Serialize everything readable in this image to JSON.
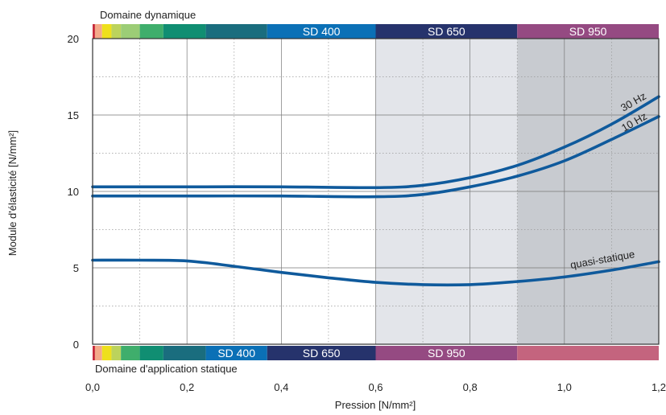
{
  "chart_data": {
    "type": "line",
    "title": "",
    "xlabel": "Pression [N/mm²]",
    "ylabel": "Module d'élasticité [N/mm²]",
    "xlim": [
      0,
      1.2
    ],
    "ylim": [
      0,
      20
    ],
    "x_ticks": [
      "0,0",
      "0,2",
      "0,4",
      "0,6",
      "0,8",
      "1,0",
      "1,2"
    ],
    "y_ticks": [
      "0",
      "5",
      "10",
      "15",
      "20"
    ],
    "grid": true,
    "series": [
      {
        "name": "30 Hz",
        "color": "#0f5a9c",
        "x": [
          0,
          0.2,
          0.4,
          0.6,
          0.7,
          0.8,
          0.9,
          1.0,
          1.1,
          1.2
        ],
        "y": [
          10.3,
          10.3,
          10.3,
          10.25,
          10.4,
          10.9,
          11.7,
          12.9,
          14.4,
          16.2
        ]
      },
      {
        "name": "10 Hz",
        "color": "#0f5a9c",
        "x": [
          0,
          0.2,
          0.4,
          0.6,
          0.7,
          0.8,
          0.9,
          1.0,
          1.1,
          1.2
        ],
        "y": [
          9.7,
          9.7,
          9.7,
          9.65,
          9.8,
          10.3,
          11.0,
          12.0,
          13.4,
          14.9
        ]
      },
      {
        "name": "quasi-statique",
        "color": "#0f5a9c",
        "x": [
          0,
          0.1,
          0.2,
          0.3,
          0.4,
          0.5,
          0.6,
          0.7,
          0.8,
          0.9,
          1.0,
          1.1,
          1.2
        ],
        "y": [
          5.5,
          5.5,
          5.45,
          5.1,
          4.7,
          4.35,
          4.05,
          3.9,
          3.9,
          4.1,
          4.4,
          4.85,
          5.4
        ]
      }
    ],
    "regions": [
      {
        "from": 0.6,
        "to": 0.9,
        "color": "#e3e5ea"
      },
      {
        "from": 0.9,
        "to": 1.2,
        "color": "#c8cbd0"
      }
    ],
    "top_band": {
      "label": "Domaine dynamique",
      "segments": [
        {
          "from": 0.0,
          "to": 0.005,
          "color": "#c62a3c",
          "label": ""
        },
        {
          "from": 0.005,
          "to": 0.02,
          "color": "#f4a98a",
          "label": ""
        },
        {
          "from": 0.02,
          "to": 0.04,
          "color": "#eee01c",
          "label": ""
        },
        {
          "from": 0.04,
          "to": 0.06,
          "color": "#bcd35c",
          "label": ""
        },
        {
          "from": 0.06,
          "to": 0.1,
          "color": "#9ccd76",
          "label": ""
        },
        {
          "from": 0.1,
          "to": 0.15,
          "color": "#3fae6c",
          "label": ""
        },
        {
          "from": 0.15,
          "to": 0.24,
          "color": "#108e72",
          "label": ""
        },
        {
          "from": 0.24,
          "to": 0.37,
          "color": "#1a6d7e",
          "label": ""
        },
        {
          "from": 0.37,
          "to": 0.6,
          "color": "#0b70b6",
          "label": "SD 400"
        },
        {
          "from": 0.6,
          "to": 0.9,
          "color": "#26336c",
          "label": "SD 650"
        },
        {
          "from": 0.9,
          "to": 1.2,
          "color": "#954a82",
          "label": "SD 950"
        }
      ]
    },
    "bottom_band": {
      "label": "Domaine d'application statique",
      "segments": [
        {
          "from": 0.0,
          "to": 0.005,
          "color": "#c62a3c",
          "label": ""
        },
        {
          "from": 0.005,
          "to": 0.02,
          "color": "#f4a98a",
          "label": ""
        },
        {
          "from": 0.02,
          "to": 0.04,
          "color": "#eee01c",
          "label": ""
        },
        {
          "from": 0.04,
          "to": 0.06,
          "color": "#bcd35c",
          "label": ""
        },
        {
          "from": 0.06,
          "to": 0.1,
          "color": "#3fae6c",
          "label": ""
        },
        {
          "from": 0.1,
          "to": 0.15,
          "color": "#108e72",
          "label": ""
        },
        {
          "from": 0.15,
          "to": 0.24,
          "color": "#1a6d7e",
          "label": ""
        },
        {
          "from": 0.24,
          "to": 0.37,
          "color": "#0b70b6",
          "label": "SD 400"
        },
        {
          "from": 0.37,
          "to": 0.6,
          "color": "#26336c",
          "label": "SD 650"
        },
        {
          "from": 0.6,
          "to": 0.9,
          "color": "#954a82",
          "label": "SD 950"
        },
        {
          "from": 0.9,
          "to": 1.2,
          "color": "#c4647e",
          "label": ""
        }
      ]
    }
  }
}
